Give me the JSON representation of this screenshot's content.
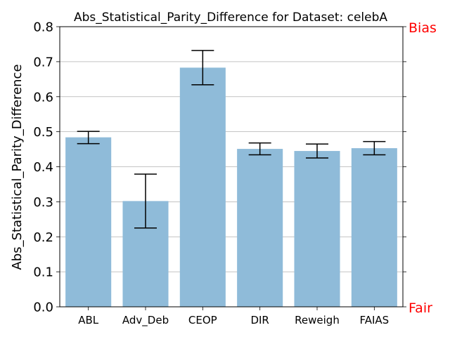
{
  "chart_data": {
    "type": "bar",
    "title": "Abs_Statistical_Parity_Difference for Dataset: celebA",
    "xlabel": "",
    "ylabel": "Abs_Statistical_Parity_Difference",
    "ylim": [
      0,
      0.8
    ],
    "yticks": [
      0.0,
      0.1,
      0.2,
      0.3,
      0.4,
      0.5,
      0.6,
      0.7,
      0.8
    ],
    "grid": "horizontal",
    "categories": [
      "ABL",
      "Adv_Deb",
      "CEOP",
      "DIR",
      "Reweigh",
      "FAIAS"
    ],
    "values": [
      0.484,
      0.302,
      0.683,
      0.451,
      0.445,
      0.453
    ],
    "error_low": [
      0.466,
      0.225,
      0.634,
      0.434,
      0.425,
      0.434
    ],
    "error_high": [
      0.501,
      0.379,
      0.732,
      0.468,
      0.465,
      0.472
    ],
    "bar_color": "#8fbbd9",
    "annotations": {
      "top": "Bias",
      "bottom": "Fair",
      "color": "#ff0000"
    }
  }
}
